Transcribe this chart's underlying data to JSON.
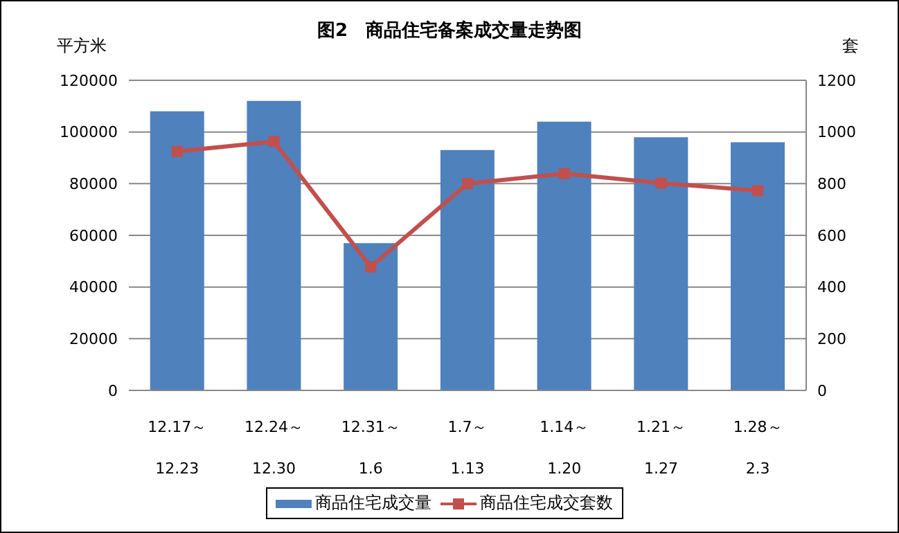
{
  "chart_data": {
    "type": "bar",
    "title": "图2　商品住宅备案成交量走势图",
    "ylabel": "平方米",
    "y2label": "套",
    "categories": [
      "12.17～\n12.23",
      "12.24～\n12.30",
      "12.31～\n1.6",
      "1.7～\n1.13",
      "1.14～\n1.20",
      "1.21～\n1.27",
      "1.28～\n2.3"
    ],
    "series": [
      {
        "name": "商品住宅成交量",
        "color": "#4f81bd",
        "values": [
          108000,
          112000,
          57000,
          93000,
          104000,
          98000,
          96000
        ]
      },
      {
        "name": "商品住宅成交套数",
        "type": "line",
        "axis": "y2",
        "color": "#c0504d",
        "marker": "square",
        "values": [
          925,
          963,
          478,
          800,
          839,
          802,
          773
        ]
      }
    ],
    "ylim": [
      0,
      120000
    ],
    "yticks": [
      0,
      20000,
      40000,
      60000,
      80000,
      100000,
      120000
    ],
    "y2lim": [
      0,
      1200
    ],
    "y2ticks": [
      0,
      200,
      400,
      600,
      800,
      1000,
      1200
    ],
    "grid": "y",
    "legend": "bottom"
  }
}
